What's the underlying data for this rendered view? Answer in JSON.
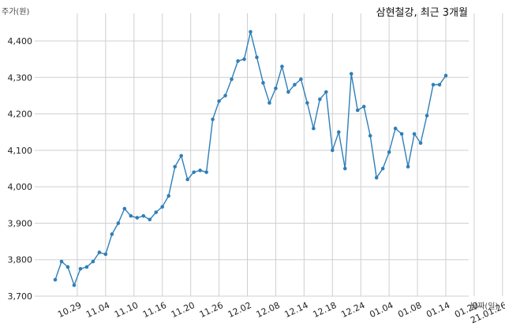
{
  "chart_data": {
    "type": "line",
    "title": "삼현철강, 최근 3개월",
    "ylabel": "주가(원)",
    "xlabel": "날짜(일)",
    "ylim": [
      3700,
      4450
    ],
    "yticks": [
      3700,
      3800,
      3900,
      4000,
      4100,
      4200,
      4300,
      4400
    ],
    "ytick_labels": [
      "3,700",
      "3,800",
      "3,900",
      "4,000",
      "4,100",
      "4,200",
      "4,300",
      "4,400"
    ],
    "xtick_labels": [
      "10.29",
      "11.04",
      "11.10",
      "11.16",
      "11.20",
      "11.26",
      "12.02",
      "12.08",
      "12.14",
      "12.18",
      "12.24",
      "01.04",
      "01.08",
      "01.14",
      "01.20",
      "21.01.26"
    ],
    "xtick_positions": [
      3.5,
      8,
      12.5,
      17,
      21.5,
      26,
      30.5,
      35,
      39.5,
      44,
      48.5,
      53,
      57.5,
      62,
      66.5,
      71
    ],
    "grid": true,
    "series": [
      {
        "color": "#2e7fb8",
        "values": [
          3745,
          3795,
          3780,
          3730,
          3775,
          3780,
          3795,
          3820,
          3815,
          3870,
          3900,
          3940,
          3920,
          3915,
          3920,
          3910,
          3930,
          3945,
          3975,
          4055,
          4085,
          4020,
          4040,
          4045,
          4040,
          4185,
          4235,
          4250,
          4295,
          4345,
          4350,
          4425,
          4355,
          4285,
          4230,
          4270,
          4330,
          4260,
          4280,
          4295,
          4230,
          4160,
          4240,
          4260,
          4100,
          4150,
          4050,
          4310,
          4210,
          4220,
          4140,
          4025,
          4050,
          4095,
          4160,
          4145,
          4055,
          4145,
          4120,
          4195,
          4280,
          4280,
          4305
        ]
      }
    ]
  }
}
